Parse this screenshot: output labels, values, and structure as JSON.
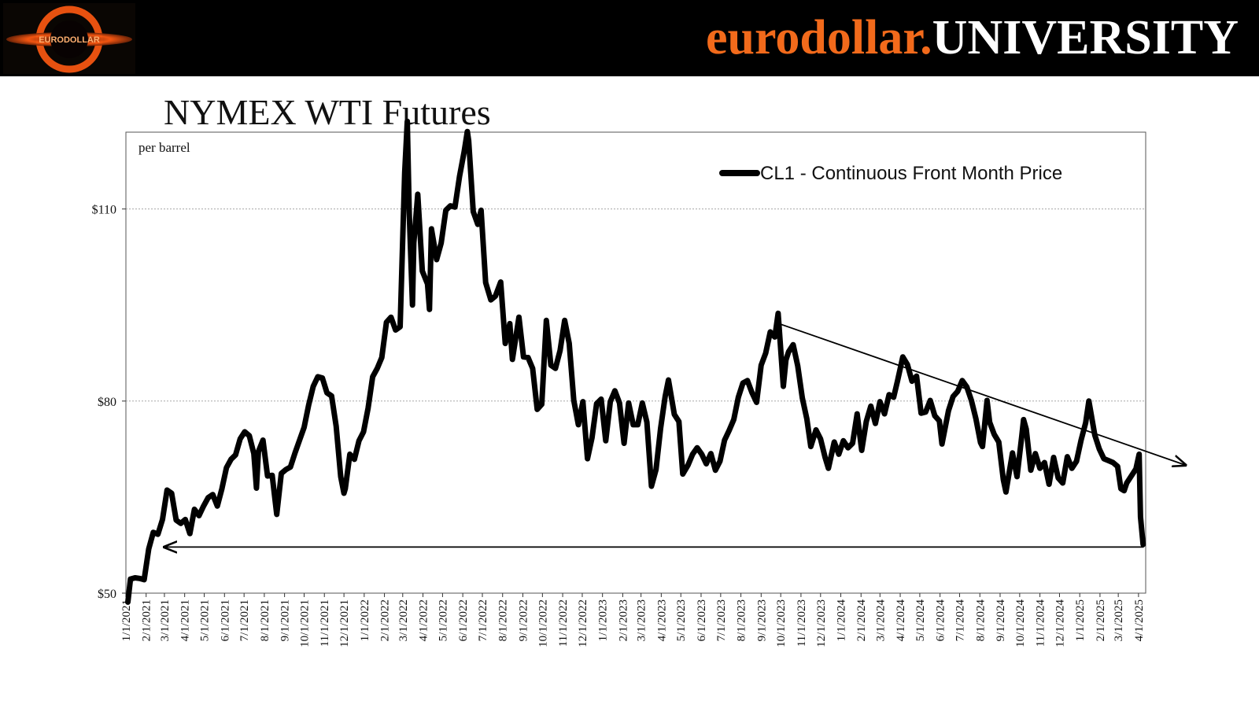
{
  "header": {
    "brand_part1": "eurodollar.",
    "brand_part2": "UNIVERSITY",
    "logo_text": "EURODOLLAR",
    "colors": {
      "bar": "#000000",
      "brand_orange": "#f26a1b",
      "brand_white": "#ffffff"
    }
  },
  "chart_data": {
    "type": "line",
    "title": "NYMEX WTI Futures",
    "unit_note": "per barrel",
    "xlabel": "",
    "ylabel": "",
    "ylim": [
      50,
      122
    ],
    "xlim": [
      "2021-01-01",
      "2025-04-12"
    ],
    "y_ticks": [
      50,
      80,
      110
    ],
    "y_tick_labels": [
      "$50",
      "$80",
      "$110"
    ],
    "x_tick_labels": [
      "1/1/2021",
      "2/1/2021",
      "3/1/2021",
      "4/1/2021",
      "5/1/2021",
      "6/1/2021",
      "7/1/2021",
      "8/1/2021",
      "9/1/2021",
      "10/1/2021",
      "11/1/2021",
      "12/1/2021",
      "1/1/2022",
      "2/1/2022",
      "3/1/2022",
      "4/1/2022",
      "5/1/2022",
      "6/1/2022",
      "7/1/2022",
      "8/1/2022",
      "9/1/2022",
      "10/1/2022",
      "11/1/2022",
      "12/1/2022",
      "1/1/2023",
      "2/1/2023",
      "3/1/2023",
      "4/1/2023",
      "5/1/2023",
      "6/1/2023",
      "7/1/2023",
      "8/1/2023",
      "9/1/2023",
      "10/1/2023",
      "11/1/2023",
      "12/1/2023",
      "1/1/2024",
      "2/1/2024",
      "3/1/2024",
      "4/1/2024",
      "5/1/2024",
      "6/1/2024",
      "7/1/2024",
      "8/1/2024",
      "9/1/2024",
      "10/1/2024",
      "11/1/2024",
      "12/1/2024",
      "1/1/2025",
      "2/1/2025",
      "3/1/2025",
      "4/1/2025"
    ],
    "grid": {
      "horizontal": true,
      "vertical": false
    },
    "legend": {
      "position": "top-right"
    },
    "series": [
      {
        "name": "CL1 - Continuous Front Month Price",
        "color": "#000000",
        "points": [
          [
            "2021-01-04",
            48.6
          ],
          [
            "2021-01-08",
            52.2
          ],
          [
            "2021-01-15",
            52.4
          ],
          [
            "2021-01-22",
            52.3
          ],
          [
            "2021-01-29",
            52.1
          ],
          [
            "2021-02-05",
            56.9
          ],
          [
            "2021-02-12",
            59.5
          ],
          [
            "2021-02-19",
            59.2
          ],
          [
            "2021-02-26",
            61.5
          ],
          [
            "2021-03-05",
            66.1
          ],
          [
            "2021-03-12",
            65.6
          ],
          [
            "2021-03-19",
            61.4
          ],
          [
            "2021-03-26",
            60.9
          ],
          [
            "2021-04-02",
            61.5
          ],
          [
            "2021-04-09",
            59.3
          ],
          [
            "2021-04-16",
            63.1
          ],
          [
            "2021-04-23",
            62.1
          ],
          [
            "2021-04-30",
            63.6
          ],
          [
            "2021-05-07",
            64.9
          ],
          [
            "2021-05-14",
            65.4
          ],
          [
            "2021-05-21",
            63.6
          ],
          [
            "2021-05-28",
            66.3
          ],
          [
            "2021-06-04",
            69.6
          ],
          [
            "2021-06-11",
            70.9
          ],
          [
            "2021-06-18",
            71.6
          ],
          [
            "2021-06-25",
            74.1
          ],
          [
            "2021-07-02",
            75.2
          ],
          [
            "2021-07-09",
            74.6
          ],
          [
            "2021-07-16",
            71.8
          ],
          [
            "2021-07-20",
            66.4
          ],
          [
            "2021-07-23",
            72.1
          ],
          [
            "2021-07-30",
            73.9
          ],
          [
            "2021-08-06",
            68.3
          ],
          [
            "2021-08-13",
            68.4
          ],
          [
            "2021-08-20",
            62.3
          ],
          [
            "2021-08-27",
            68.7
          ],
          [
            "2021-09-03",
            69.3
          ],
          [
            "2021-09-10",
            69.7
          ],
          [
            "2021-09-17",
            71.9
          ],
          [
            "2021-09-24",
            73.9
          ],
          [
            "2021-10-01",
            75.9
          ],
          [
            "2021-10-08",
            79.4
          ],
          [
            "2021-10-15",
            82.3
          ],
          [
            "2021-10-22",
            83.8
          ],
          [
            "2021-10-29",
            83.6
          ],
          [
            "2021-11-05",
            81.3
          ],
          [
            "2021-11-12",
            80.8
          ],
          [
            "2021-11-19",
            76.1
          ],
          [
            "2021-11-26",
            68.2
          ],
          [
            "2021-12-01",
            65.6
          ],
          [
            "2021-12-03",
            66.3
          ],
          [
            "2021-12-10",
            71.7
          ],
          [
            "2021-12-17",
            70.9
          ],
          [
            "2021-12-24",
            73.8
          ],
          [
            "2021-12-31",
            75.2
          ],
          [
            "2022-01-07",
            78.9
          ],
          [
            "2022-01-14",
            83.8
          ],
          [
            "2022-01-21",
            85.1
          ],
          [
            "2022-01-28",
            86.8
          ],
          [
            "2022-02-04",
            92.3
          ],
          [
            "2022-02-11",
            93.1
          ],
          [
            "2022-02-18",
            91.1
          ],
          [
            "2022-02-25",
            91.6
          ],
          [
            "2022-03-04",
            115.7
          ],
          [
            "2022-03-08",
            123.7
          ],
          [
            "2022-03-11",
            109.3
          ],
          [
            "2022-03-16",
            95.0
          ],
          [
            "2022-03-18",
            104.7
          ],
          [
            "2022-03-24",
            112.3
          ],
          [
            "2022-03-31",
            100.3
          ],
          [
            "2022-04-08",
            98.3
          ],
          [
            "2022-04-11",
            94.3
          ],
          [
            "2022-04-14",
            106.9
          ],
          [
            "2022-04-22",
            102.1
          ],
          [
            "2022-04-29",
            104.7
          ],
          [
            "2022-05-06",
            109.8
          ],
          [
            "2022-05-13",
            110.5
          ],
          [
            "2022-05-20",
            110.3
          ],
          [
            "2022-05-27",
            115.1
          ],
          [
            "2022-06-03",
            118.9
          ],
          [
            "2022-06-08",
            122.1
          ],
          [
            "2022-06-10",
            120.7
          ],
          [
            "2022-06-17",
            109.6
          ],
          [
            "2022-06-24",
            107.6
          ],
          [
            "2022-06-29",
            109.8
          ],
          [
            "2022-07-06",
            98.5
          ],
          [
            "2022-07-14",
            95.8
          ],
          [
            "2022-07-21",
            96.4
          ],
          [
            "2022-07-29",
            98.6
          ],
          [
            "2022-08-05",
            89.0
          ],
          [
            "2022-08-12",
            92.1
          ],
          [
            "2022-08-16",
            86.5
          ],
          [
            "2022-08-26",
            93.1
          ],
          [
            "2022-09-02",
            86.9
          ],
          [
            "2022-09-09",
            86.8
          ],
          [
            "2022-09-16",
            85.1
          ],
          [
            "2022-09-23",
            78.7
          ],
          [
            "2022-09-30",
            79.5
          ],
          [
            "2022-10-07",
            92.6
          ],
          [
            "2022-10-14",
            85.6
          ],
          [
            "2022-10-21",
            85.1
          ],
          [
            "2022-10-28",
            87.9
          ],
          [
            "2022-11-04",
            92.6
          ],
          [
            "2022-11-11",
            89.0
          ],
          [
            "2022-11-18",
            80.1
          ],
          [
            "2022-11-25",
            76.3
          ],
          [
            "2022-12-02",
            79.9
          ],
          [
            "2022-12-09",
            71.0
          ],
          [
            "2022-12-16",
            74.3
          ],
          [
            "2022-12-23",
            79.6
          ],
          [
            "2022-12-30",
            80.3
          ],
          [
            "2023-01-06",
            73.8
          ],
          [
            "2023-01-13",
            79.9
          ],
          [
            "2023-01-20",
            81.6
          ],
          [
            "2023-01-27",
            79.7
          ],
          [
            "2023-02-03",
            73.4
          ],
          [
            "2023-02-10",
            79.7
          ],
          [
            "2023-02-17",
            76.3
          ],
          [
            "2023-02-24",
            76.3
          ],
          [
            "2023-03-03",
            79.7
          ],
          [
            "2023-03-10",
            76.7
          ],
          [
            "2023-03-17",
            66.7
          ],
          [
            "2023-03-24",
            69.3
          ],
          [
            "2023-03-31",
            75.7
          ],
          [
            "2023-04-07",
            80.7
          ],
          [
            "2023-04-12",
            83.3
          ],
          [
            "2023-04-21",
            77.9
          ],
          [
            "2023-04-28",
            76.8
          ],
          [
            "2023-05-04",
            68.6
          ],
          [
            "2023-05-12",
            70.0
          ],
          [
            "2023-05-19",
            71.7
          ],
          [
            "2023-05-26",
            72.7
          ],
          [
            "2023-06-02",
            71.7
          ],
          [
            "2023-06-09",
            70.2
          ],
          [
            "2023-06-16",
            71.8
          ],
          [
            "2023-06-23",
            69.2
          ],
          [
            "2023-06-30",
            70.6
          ],
          [
            "2023-07-07",
            73.9
          ],
          [
            "2023-07-14",
            75.4
          ],
          [
            "2023-07-21",
            77.1
          ],
          [
            "2023-07-28",
            80.6
          ],
          [
            "2023-08-04",
            82.8
          ],
          [
            "2023-08-11",
            83.2
          ],
          [
            "2023-08-18",
            81.3
          ],
          [
            "2023-08-25",
            79.8
          ],
          [
            "2023-09-01",
            85.6
          ],
          [
            "2023-09-08",
            87.5
          ],
          [
            "2023-09-15",
            90.8
          ],
          [
            "2023-09-22",
            90.0
          ],
          [
            "2023-09-27",
            93.7
          ],
          [
            "2023-10-05",
            82.3
          ],
          [
            "2023-10-09",
            86.4
          ],
          [
            "2023-10-13",
            87.7
          ],
          [
            "2023-10-20",
            88.8
          ],
          [
            "2023-10-27",
            85.5
          ],
          [
            "2023-11-03",
            80.5
          ],
          [
            "2023-11-10",
            77.2
          ],
          [
            "2023-11-16",
            72.9
          ],
          [
            "2023-11-24",
            75.5
          ],
          [
            "2023-12-01",
            74.1
          ],
          [
            "2023-12-08",
            71.2
          ],
          [
            "2023-12-13",
            69.5
          ],
          [
            "2023-12-22",
            73.6
          ],
          [
            "2023-12-29",
            71.7
          ],
          [
            "2024-01-05",
            73.8
          ],
          [
            "2024-01-12",
            72.7
          ],
          [
            "2024-01-19",
            73.4
          ],
          [
            "2024-01-26",
            78.0
          ],
          [
            "2024-02-02",
            72.3
          ],
          [
            "2024-02-09",
            76.8
          ],
          [
            "2024-02-16",
            79.2
          ],
          [
            "2024-02-23",
            76.5
          ],
          [
            "2024-03-01",
            79.9
          ],
          [
            "2024-03-08",
            78.0
          ],
          [
            "2024-03-15",
            81.0
          ],
          [
            "2024-03-22",
            80.6
          ],
          [
            "2024-03-28",
            83.2
          ],
          [
            "2024-04-05",
            86.9
          ],
          [
            "2024-04-12",
            85.7
          ],
          [
            "2024-04-19",
            83.1
          ],
          [
            "2024-04-26",
            83.9
          ],
          [
            "2024-05-03",
            78.1
          ],
          [
            "2024-05-10",
            78.3
          ],
          [
            "2024-05-17",
            80.1
          ],
          [
            "2024-05-24",
            77.7
          ],
          [
            "2024-05-31",
            76.9
          ],
          [
            "2024-06-04",
            73.3
          ],
          [
            "2024-06-14",
            78.5
          ],
          [
            "2024-06-21",
            80.7
          ],
          [
            "2024-06-28",
            81.5
          ],
          [
            "2024-07-05",
            83.2
          ],
          [
            "2024-07-12",
            82.2
          ],
          [
            "2024-07-19",
            80.1
          ],
          [
            "2024-07-26",
            77.2
          ],
          [
            "2024-08-02",
            73.5
          ],
          [
            "2024-08-05",
            72.9
          ],
          [
            "2024-08-12",
            80.1
          ],
          [
            "2024-08-16",
            76.7
          ],
          [
            "2024-08-23",
            74.8
          ],
          [
            "2024-08-30",
            73.6
          ],
          [
            "2024-09-06",
            67.7
          ],
          [
            "2024-09-10",
            65.8
          ],
          [
            "2024-09-20",
            71.9
          ],
          [
            "2024-09-27",
            68.2
          ],
          [
            "2024-10-04",
            74.4
          ],
          [
            "2024-10-07",
            77.1
          ],
          [
            "2024-10-11",
            75.6
          ],
          [
            "2024-10-18",
            69.2
          ],
          [
            "2024-10-25",
            71.8
          ],
          [
            "2024-11-01",
            69.5
          ],
          [
            "2024-11-08",
            70.4
          ],
          [
            "2024-11-15",
            67.0
          ],
          [
            "2024-11-22",
            71.2
          ],
          [
            "2024-11-29",
            68.0
          ],
          [
            "2024-12-06",
            67.2
          ],
          [
            "2024-12-13",
            71.3
          ],
          [
            "2024-12-20",
            69.5
          ],
          [
            "2024-12-27",
            70.6
          ],
          [
            "2025-01-03",
            73.9
          ],
          [
            "2025-01-10",
            76.6
          ],
          [
            "2025-01-15",
            80.0
          ],
          [
            "2025-01-24",
            74.7
          ],
          [
            "2025-01-31",
            72.5
          ],
          [
            "2025-02-07",
            71.0
          ],
          [
            "2025-02-14",
            70.7
          ],
          [
            "2025-02-21",
            70.4
          ],
          [
            "2025-02-28",
            69.8
          ],
          [
            "2025-03-05",
            66.3
          ],
          [
            "2025-03-10",
            66.0
          ],
          [
            "2025-03-14",
            67.2
          ],
          [
            "2025-03-21",
            68.3
          ],
          [
            "2025-03-28",
            69.4
          ],
          [
            "2025-04-02",
            71.7
          ],
          [
            "2025-04-03",
            66.9
          ],
          [
            "2025-04-04",
            61.9
          ],
          [
            "2025-04-08",
            57.6
          ]
        ]
      }
    ],
    "annotations": [
      {
        "type": "arrow",
        "from": [
          "2023-10-01",
          92.0
        ],
        "to": [
          "2025-06-12",
          70.0
        ]
      },
      {
        "type": "arrow",
        "from": [
          "2025-04-09",
          57.2
        ],
        "to": [
          "2021-03-01",
          57.2
        ]
      }
    ]
  }
}
